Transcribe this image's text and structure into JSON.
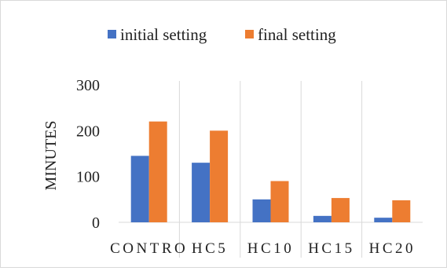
{
  "chart_data": {
    "type": "bar",
    "title": "",
    "xlabel": "",
    "ylabel": "MINUTES",
    "ylim": [
      0,
      300
    ],
    "yticks": [
      0,
      100,
      200,
      300
    ],
    "grid": "vertical category separators",
    "legend_position": "top",
    "categories": [
      "CONTROL",
      "HC5",
      "HC10",
      "HC15",
      "HC20"
    ],
    "category_labels_shown": [
      "CONTRO",
      "HC5",
      "HC10",
      "HC15",
      "HC20"
    ],
    "series": [
      {
        "name": "initial setting",
        "color": "#4472c4",
        "values": [
          145,
          130,
          50,
          14,
          10
        ]
      },
      {
        "name": "final setting",
        "color": "#ed7d31",
        "values": [
          220,
          200,
          90,
          53,
          48
        ]
      }
    ]
  }
}
